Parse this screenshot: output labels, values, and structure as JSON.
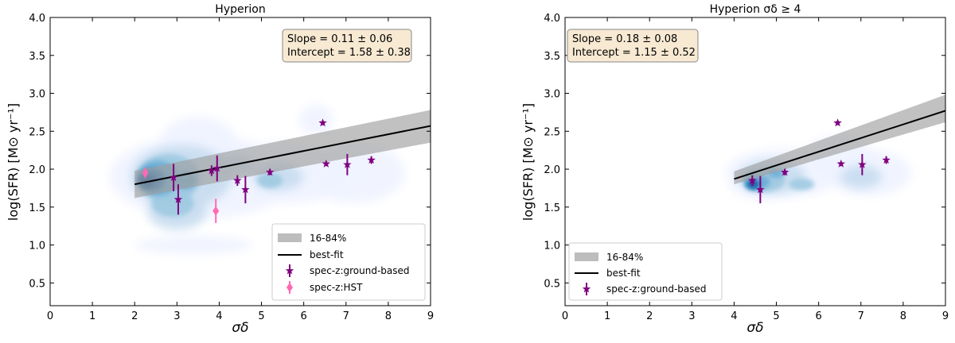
{
  "chart_data": [
    {
      "type": "scatter",
      "title": "Hyperion",
      "xlabel": "σδ",
      "ylabel": "log(SFR) [M⊙ yr⁻¹]",
      "xlim": [
        0,
        9
      ],
      "ylim": [
        0.2,
        4.0
      ],
      "xticks": [
        "0",
        "1",
        "2",
        "3",
        "4",
        "5",
        "6",
        "7",
        "8",
        "9"
      ],
      "yticks": [
        "0.5",
        "1.0",
        "1.5",
        "2.0",
        "2.5",
        "3.0",
        "3.5",
        "4.0"
      ],
      "annotation": [
        "Slope = 0.11 ± 0.06",
        "Intercept = 1.58 ± 0.38"
      ],
      "legend_position": "lower-right",
      "legend": [
        "16-84%",
        "best-fit",
        "spec-z:ground-based",
        "spec-z:HST"
      ],
      "fit": {
        "slope": 0.11,
        "intercept": 1.58,
        "x_range": [
          2.0,
          9.0
        ],
        "band_16": [
          [
            2.0,
            1.62
          ],
          [
            9.0,
            2.35
          ]
        ],
        "band_84": [
          [
            2.0,
            1.98
          ],
          [
            9.0,
            2.78
          ]
        ]
      },
      "series": [
        {
          "name": "spec-z:ground-based",
          "color": "#800080",
          "points": [
            {
              "x": 2.92,
              "y": 1.89,
              "yerr": 0.18
            },
            {
              "x": 3.03,
              "y": 1.6,
              "yerr": 0.2
            },
            {
              "x": 3.82,
              "y": 1.98,
              "yerr": 0.07
            },
            {
              "x": 3.95,
              "y": 2.01,
              "yerr": 0.17
            },
            {
              "x": 4.43,
              "y": 1.85,
              "yerr": 0.07
            },
            {
              "x": 4.62,
              "y": 1.73,
              "yerr": 0.18
            },
            {
              "x": 5.2,
              "y": 1.96,
              "yerr": 0.04
            },
            {
              "x": 6.45,
              "y": 2.61,
              "yerr": 0.03
            },
            {
              "x": 6.53,
              "y": 2.07,
              "yerr": 0.03
            },
            {
              "x": 7.03,
              "y": 2.06,
              "yerr": 0.14
            },
            {
              "x": 7.6,
              "y": 2.12,
              "yerr": 0.05
            }
          ]
        },
        {
          "name": "spec-z:HST",
          "color": "#ff69b4",
          "points": [
            {
              "x": 2.25,
              "y": 1.95,
              "yerr": 0.07
            },
            {
              "x": 3.92,
              "y": 1.45,
              "yerr": 0.16
            }
          ]
        }
      ],
      "density_colors": [
        "#eff3ff",
        "#c6dbef",
        "#9ecae1",
        "#6baed6",
        "#3182bd",
        "#08519c"
      ]
    },
    {
      "type": "scatter",
      "title": "Hyperion σδ ≥ 4",
      "xlabel": "σδ",
      "ylabel": "log(SFR) [M⊙ yr⁻¹]",
      "xlim": [
        0,
        9
      ],
      "ylim": [
        0.2,
        4.0
      ],
      "xticks": [
        "0",
        "1",
        "2",
        "3",
        "4",
        "5",
        "6",
        "7",
        "8",
        "9"
      ],
      "yticks": [
        "0.5",
        "1.0",
        "1.5",
        "2.0",
        "2.5",
        "3.0",
        "3.5",
        "4.0"
      ],
      "annotation": [
        "Slope = 0.18 ± 0.08",
        "Intercept = 1.15 ± 0.52"
      ],
      "legend_position": "lower-left",
      "legend": [
        "16-84%",
        "best-fit",
        "spec-z:ground-based"
      ],
      "fit": {
        "slope": 0.18,
        "intercept": 1.15,
        "x_range": [
          4.0,
          9.0
        ],
        "band_16": [
          [
            4.0,
            1.8
          ],
          [
            9.0,
            2.62
          ]
        ],
        "band_84": [
          [
            4.0,
            1.97
          ],
          [
            9.0,
            2.98
          ]
        ]
      },
      "series": [
        {
          "name": "spec-z:ground-based",
          "color": "#800080",
          "points": [
            {
              "x": 4.43,
              "y": 1.85,
              "yerr": 0.07
            },
            {
              "x": 4.62,
              "y": 1.73,
              "yerr": 0.18
            },
            {
              "x": 5.2,
              "y": 1.96,
              "yerr": 0.04
            },
            {
              "x": 6.45,
              "y": 2.61,
              "yerr": 0.03
            },
            {
              "x": 6.53,
              "y": 2.07,
              "yerr": 0.03
            },
            {
              "x": 7.03,
              "y": 2.06,
              "yerr": 0.14
            },
            {
              "x": 7.6,
              "y": 2.12,
              "yerr": 0.05
            }
          ]
        }
      ],
      "density_colors": [
        "#eff3ff",
        "#c6dbef",
        "#9ecae1",
        "#6baed6",
        "#3182bd",
        "#08519c"
      ]
    }
  ]
}
